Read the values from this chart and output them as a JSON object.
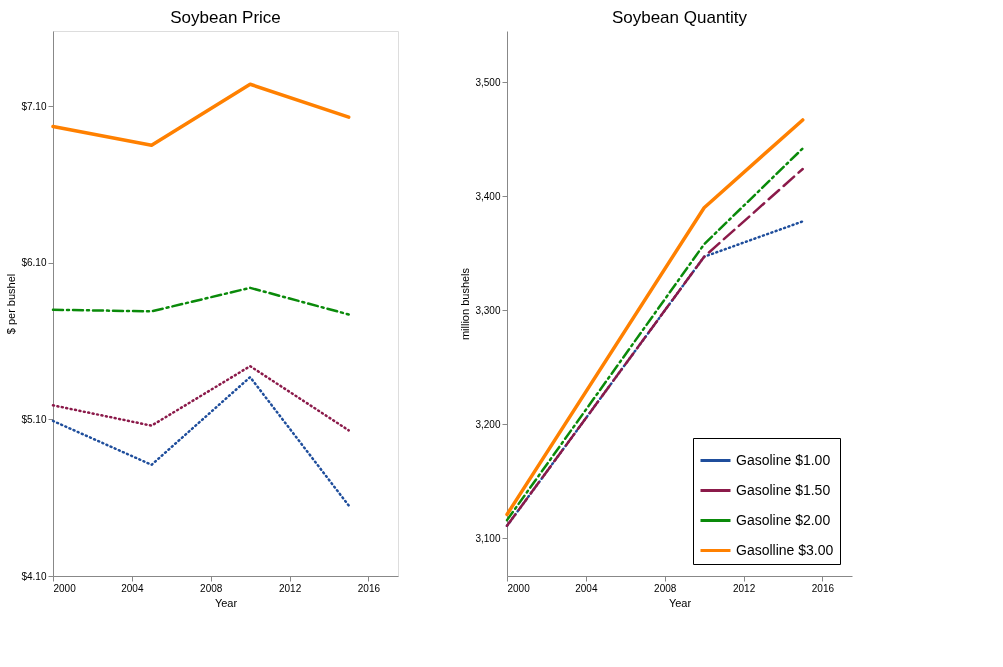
{
  "chart_data": [
    {
      "type": "line",
      "title": "Soybean Price",
      "xlabel": "Year",
      "ylabel": "$ per bushel",
      "x": [
        2000,
        2005,
        2010,
        2015
      ],
      "xlim": [
        2000,
        2017.5
      ],
      "xticks": [
        2000,
        2004,
        2008,
        2012,
        2016
      ],
      "ylim": [
        4.1,
        7.58
      ],
      "yticks": [
        {
          "value": 4.1,
          "label": "$4.10"
        },
        {
          "value": 5.1,
          "label": "$5.10"
        },
        {
          "value": 6.1,
          "label": "$6.10"
        },
        {
          "value": 7.1,
          "label": "$7.10"
        }
      ],
      "grid": false,
      "legend": false,
      "marker": "none",
      "series": [
        {
          "color": "#1f4e9c",
          "line_style": "dotted",
          "values": [
            5.09,
            4.81,
            5.37,
            4.55
          ]
        },
        {
          "color": "#8b1a4a",
          "line_style": "dotted",
          "values": [
            5.19,
            5.06,
            5.44,
            5.03
          ]
        },
        {
          "color": "#0a8a0a",
          "line_style": "dashdot",
          "values": [
            5.8,
            5.79,
            5.94,
            5.77
          ]
        },
        {
          "color": "#ff8000",
          "line_style": "solid",
          "values": [
            6.97,
            6.85,
            7.24,
            7.03
          ]
        }
      ]
    },
    {
      "type": "line",
      "title": "Soybean Quantity",
      "xlabel": "Year",
      "ylabel": "million bushels",
      "x": [
        2000,
        2010,
        2015
      ],
      "xlim": [
        2000,
        2017.5
      ],
      "xticks": [
        2000,
        2004,
        2008,
        2012,
        2016
      ],
      "ylim": [
        3067,
        3545
      ],
      "yticks": [
        {
          "value": 3100,
          "label": "3,100"
        },
        {
          "value": 3200,
          "label": "3,200"
        },
        {
          "value": 3300,
          "label": "3,300"
        },
        {
          "value": 3400,
          "label": "3,400"
        },
        {
          "value": 3500,
          "label": "3,500"
        }
      ],
      "grid": false,
      "legend": "bottom right",
      "marker": "none",
      "series": [
        {
          "name": "Gasoline $1.00",
          "color": "#1f4e9c",
          "line_style": "dotted",
          "values": [
            3111,
            3347,
            3378
          ]
        },
        {
          "name": "Gasoline $1.50",
          "color": "#8b1a4a",
          "line_style": "dashed",
          "values": [
            3111,
            3347,
            3424
          ]
        },
        {
          "name": "Gasoline $2.00",
          "color": "#0a8a0a",
          "line_style": "dashdot",
          "values": [
            3116,
            3358,
            3442
          ]
        },
        {
          "name": "Gasolline $3.00",
          "color": "#ff8000",
          "line_style": "solid",
          "values": [
            3121,
            3390,
            3467
          ]
        }
      ]
    }
  ]
}
